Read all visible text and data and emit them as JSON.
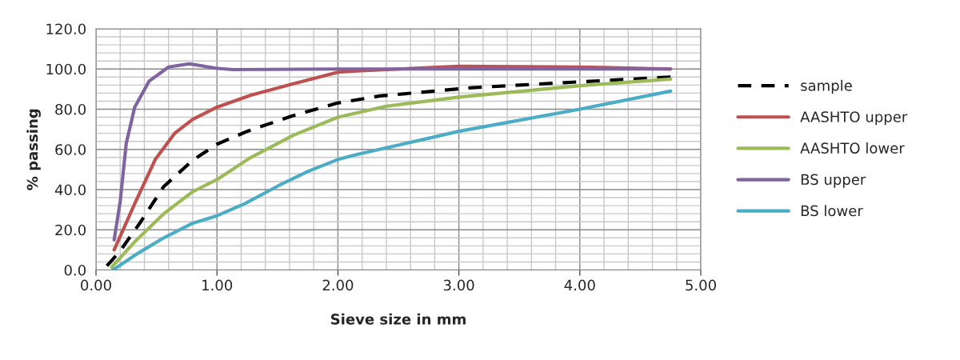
{
  "chart_data": {
    "type": "line",
    "xlabel": "Sieve size in mm",
    "ylabel": "% passing",
    "xlim": [
      0,
      5
    ],
    "xticks": [
      {
        "value": 0,
        "label": "0.00"
      },
      {
        "value": 1,
        "label": "1.00"
      },
      {
        "value": 2,
        "label": "2.00"
      },
      {
        "value": 3,
        "label": "3.00"
      },
      {
        "value": 4,
        "label": "4.00"
      },
      {
        "value": 5,
        "label": "5.00"
      }
    ],
    "ylim": [
      0,
      120
    ],
    "yticks": [
      {
        "value": 0,
        "label": "0.0"
      },
      {
        "value": 20,
        "label": "20.0"
      },
      {
        "value": 40,
        "label": "40.0"
      },
      {
        "value": 60,
        "label": "60.0"
      },
      {
        "value": 80,
        "label": "80.0"
      },
      {
        "value": 100,
        "label": "100.0"
      },
      {
        "value": 120,
        "label": "120.0"
      }
    ],
    "grid": true,
    "legend": "right",
    "marker": "none",
    "series": [
      {
        "name": "sample",
        "color": "#000000",
        "line_style": "dashed",
        "x": [
          0.09,
          0.2,
          0.37,
          0.56,
          0.8,
          1.0,
          1.25,
          1.61,
          1.99,
          2.35,
          3.11,
          3.87,
          4.75
        ],
        "values": [
          2,
          9.5,
          24,
          41.5,
          54.6,
          62.6,
          69,
          76.4,
          83,
          86.6,
          90.7,
          93.2,
          96
        ]
      },
      {
        "name": "AASHTO upper",
        "color": "#c0504d",
        "x": [
          0.15,
          0.32,
          0.49,
          0.65,
          0.8,
          1.0,
          1.28,
          1.63,
          2.0,
          2.16,
          3.0,
          4.0,
          4.75
        ],
        "values": [
          10,
          33,
          55,
          68,
          75,
          81,
          87,
          92.6,
          98.4,
          99,
          101.4,
          101,
          100
        ]
      },
      {
        "name": "AASHTO lower",
        "color": "#9bbb59",
        "x": [
          0.13,
          0.32,
          0.56,
          0.8,
          1.0,
          1.28,
          1.63,
          2.0,
          2.4,
          3.0,
          4.0,
          4.75
        ],
        "values": [
          1.5,
          14,
          28,
          39,
          45,
          56,
          67,
          76,
          81.5,
          86,
          91.7,
          95
        ]
      },
      {
        "name": "BS upper",
        "color": "#8064a2",
        "x": [
          0.15,
          0.2,
          0.25,
          0.32,
          0.44,
          0.6,
          0.77,
          0.99,
          1.13,
          2.0,
          3.0,
          4.75
        ],
        "values": [
          15,
          34,
          63,
          81,
          94,
          101,
          102.6,
          100.4,
          99.7,
          100,
          100,
          100
        ]
      },
      {
        "name": "BS lower",
        "color": "#4bacc6",
        "x": [
          0.14,
          0.32,
          0.56,
          0.8,
          1.0,
          1.23,
          1.51,
          1.75,
          2.0,
          2.16,
          3.0,
          4.0,
          4.75
        ],
        "values": [
          0,
          7.3,
          16,
          23.3,
          27,
          33,
          42,
          49,
          55,
          57.5,
          69,
          80,
          89
        ]
      }
    ]
  }
}
